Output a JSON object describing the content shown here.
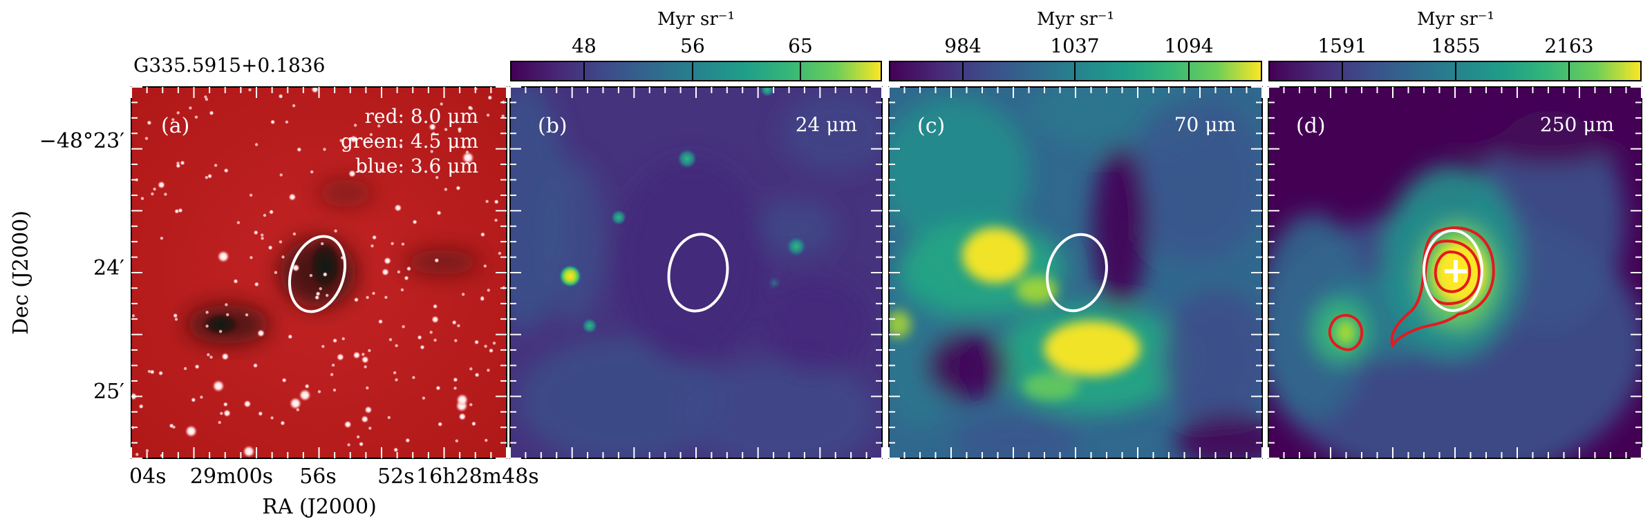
{
  "source_name": "G335.5915+0.1836",
  "axes": {
    "xlabel": "RA (J2000)",
    "ylabel": "Dec (J2000)",
    "x_ticks": [
      "04s",
      "29m00s",
      "56s",
      "52s",
      "16h28m48s"
    ],
    "y_ticks": [
      "−48°23′",
      "24′",
      "25′"
    ]
  },
  "panels": [
    {
      "id": "a",
      "letter": "(a)",
      "rgb_labels": [
        "red: 8.0 μm",
        "green: 4.5 μm",
        "blue: 3.6 μm"
      ]
    },
    {
      "id": "b",
      "letter": "(b)",
      "band": "24 μm",
      "colorbar": {
        "unit": "Myr sr⁻¹",
        "ticks": [
          "48",
          "56",
          "65"
        ]
      }
    },
    {
      "id": "c",
      "letter": "(c)",
      "band": "70 μm",
      "colorbar": {
        "unit": "Myr sr⁻¹",
        "ticks": [
          "984",
          "1037",
          "1094"
        ]
      }
    },
    {
      "id": "d",
      "letter": "(d)",
      "band": "250 μm",
      "colorbar": {
        "unit": "Myr sr⁻¹",
        "ticks": [
          "1591",
          "1855",
          "2163"
        ]
      }
    }
  ],
  "colors": {
    "viridis_dark": "#440154",
    "viridis_mid": "#21918c",
    "viridis_bright": "#fde725",
    "ellipse": "#ffffff",
    "contour": "#e41a1c",
    "background_red": "#c81e1e"
  }
}
